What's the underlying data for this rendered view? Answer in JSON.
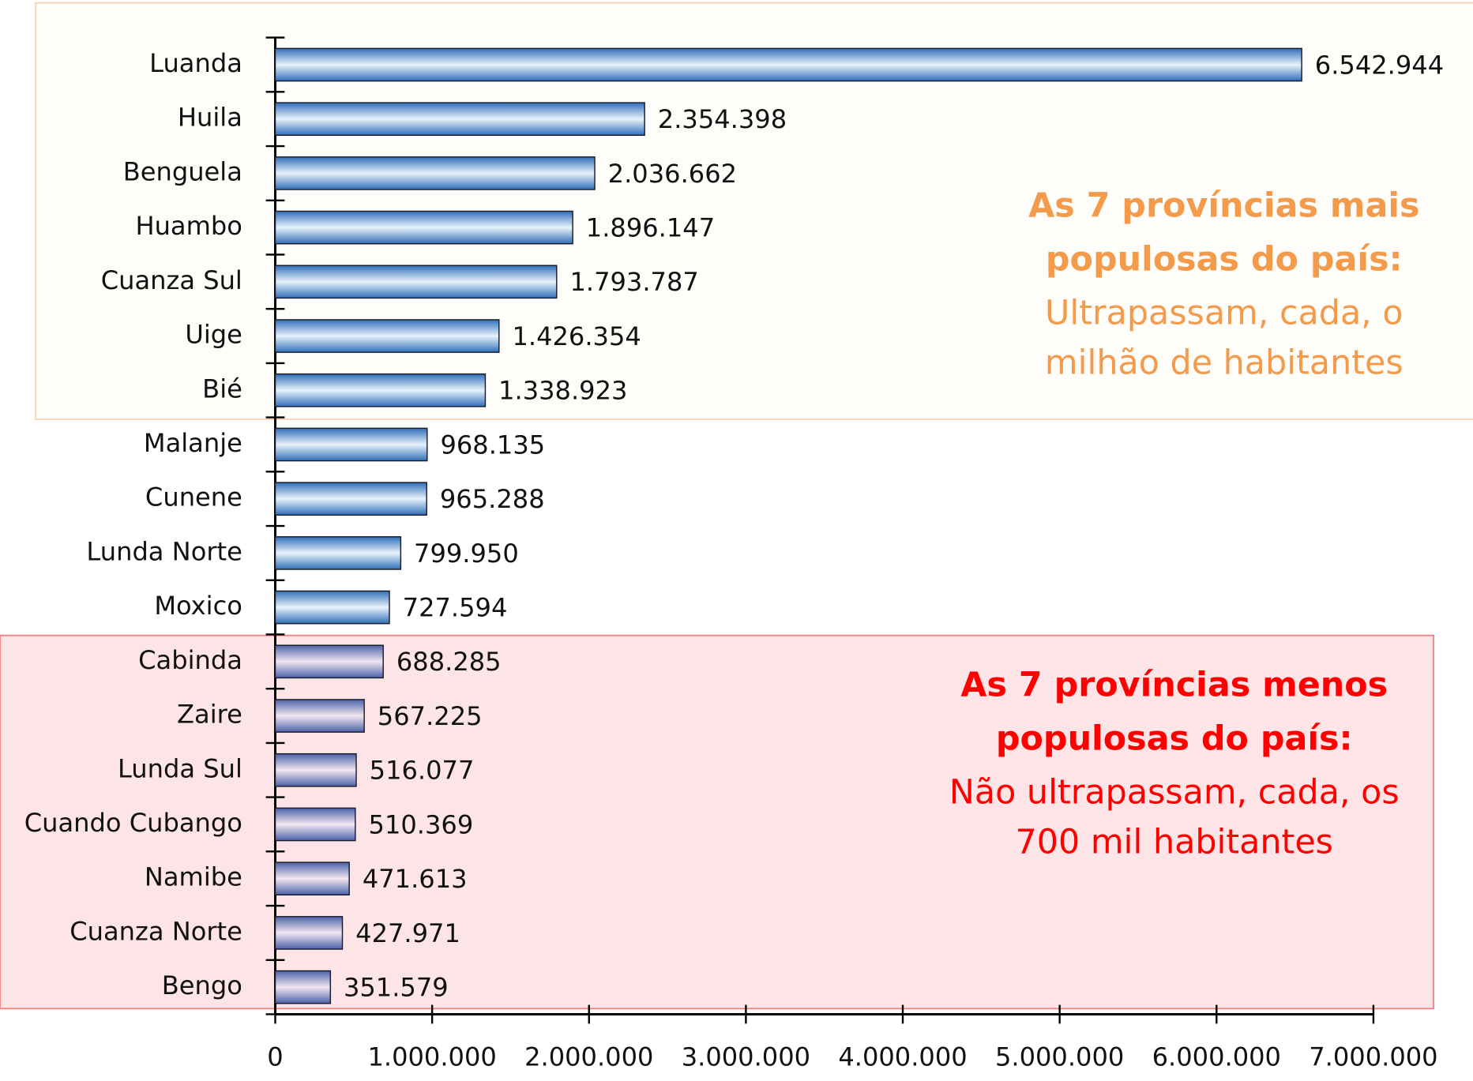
{
  "chart_data": {
    "type": "bar",
    "orientation": "horizontal",
    "categories": [
      "Luanda",
      "Huila",
      "Benguela",
      "Huambo",
      "Cuanza Sul",
      "Uige",
      "Bié",
      "Malanje",
      "Cunene",
      "Lunda Norte",
      "Moxico",
      "Cabinda",
      "Zaire",
      "Lunda Sul",
      "Cuando Cubango",
      "Namibe",
      "Cuanza Norte",
      "Bengo"
    ],
    "values": [
      6542944,
      2354398,
      2036662,
      1896147,
      1793787,
      1426354,
      1338923,
      968135,
      965288,
      799950,
      727594,
      688285,
      567225,
      516077,
      510369,
      471613,
      427971,
      351579
    ],
    "value_labels": [
      "6.542.944",
      "2.354.398",
      "2.036.662",
      "1.896.147",
      "1.793.787",
      "1.426.354",
      "1.338.923",
      "968.135",
      "965.288",
      "799.950",
      "727.594",
      "688.285",
      "567.225",
      "516.077",
      "510.369",
      "471.613",
      "427.971",
      "351.579"
    ],
    "color": "#3f8fd6",
    "xlim": [
      0,
      7000000
    ],
    "xticks": [
      0,
      {
        "value": 1000000,
        "label": "1.000.000"
      },
      {
        "value": 2000000,
        "label": "2.000.000"
      },
      {
        "value": 3000000,
        "label": "3.000.000"
      },
      {
        "value": 4000000,
        "label": "4.000.000"
      },
      {
        "value": 5000000,
        "label": "5.000.000"
      },
      {
        "value": 6000000,
        "label": "6.000.000"
      },
      {
        "value": 7000000,
        "label": "7.000.000"
      }
    ],
    "annotations": [
      {
        "title": [
          "As 7 províncias mais",
          "populosas do país:"
        ],
        "text": [
          "Ultrapassam, cada, o",
          "milhão de habitantes"
        ],
        "color": "#f39a4b"
      },
      {
        "title": [
          "As 7 províncias menos",
          "populosas do país:"
        ],
        "text": [
          "Não ultrapassam, cada, os",
          "700 mil habitantes"
        ],
        "color": "#ff0000"
      }
    ]
  }
}
